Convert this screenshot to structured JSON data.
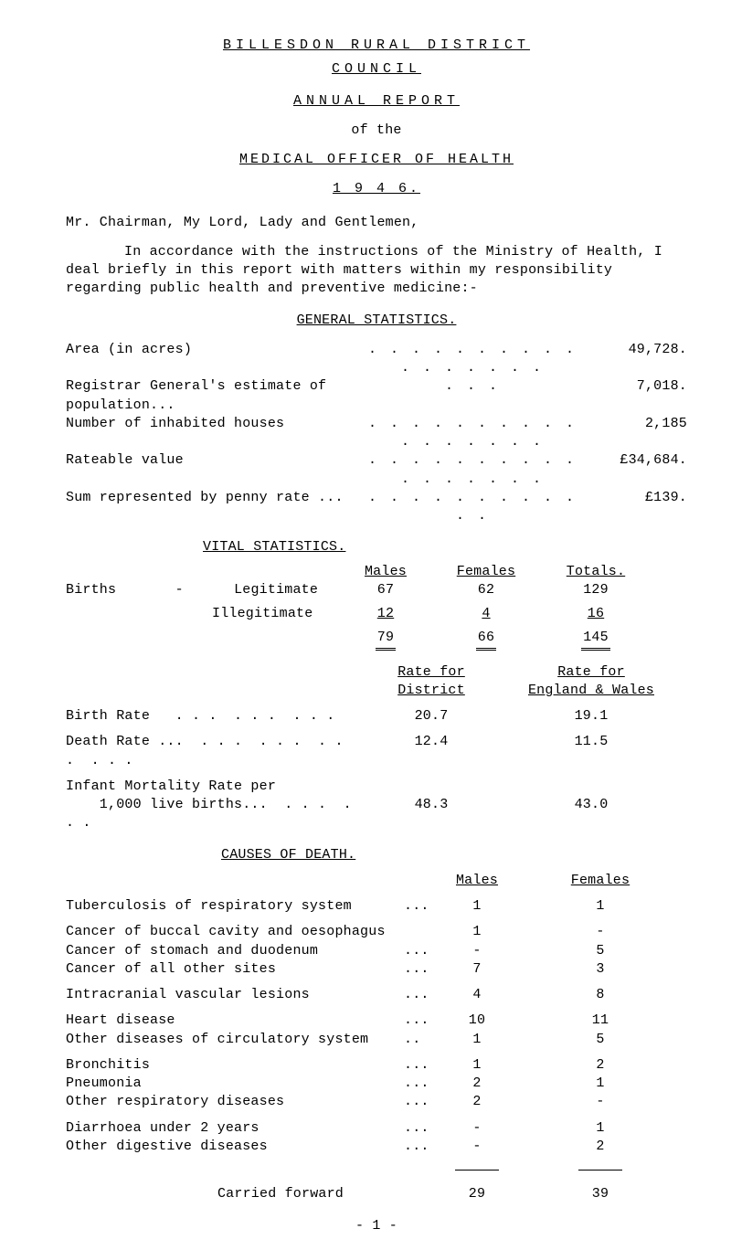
{
  "header": {
    "line1": "BILLESDON  RURAL  DISTRICT",
    "line2": "COUNCIL",
    "line3": "ANNUAL  REPORT",
    "line4": "of the",
    "line5": "MEDICAL  OFFICER  OF  HEALTH",
    "line6": "1 9 4 6."
  },
  "salutation": "Mr. Chairman, My Lord, Lady and Gentlemen,",
  "intro": "In accordance with the instructions of the Ministry of Health, I deal briefly in this report with matters within my responsibility regarding public health and preventive medicine:-",
  "sections": {
    "general_stats_title": "GENERAL STATISTICS.",
    "vital_stats_title": "VITAL STATISTICS.",
    "causes_title": "CAUSES OF DEATH."
  },
  "general_stats": [
    {
      "label": "Area (in acres)",
      "value": "49,728."
    },
    {
      "label": "Registrar General's estimate of population...",
      "value": "7,018."
    },
    {
      "label": "Number of inhabited houses",
      "value": "2,185"
    },
    {
      "label": "Rateable value",
      "value": "£34,684."
    },
    {
      "label": "Sum represented by penny rate ...",
      "value": "£139."
    }
  ],
  "vital_headers": {
    "c1": "Males",
    "c2": "Females",
    "c3": "Totals."
  },
  "vital": {
    "births_label": "Births",
    "births_dash": "-",
    "rows": [
      {
        "label": "Legitimate",
        "m": "67",
        "f": "62",
        "t": "129"
      },
      {
        "label": "Illegitimate",
        "m": "12",
        "f": "4",
        "t": "16"
      }
    ],
    "sum": {
      "m": "79",
      "f": "66",
      "t": "145"
    }
  },
  "rate_headers": {
    "c1a": "Rate for",
    "c1b": "District",
    "c2a": "Rate for",
    "c2b": "England & Wales"
  },
  "rate_rows": [
    {
      "label": "Birth Rate",
      "d": "20.7",
      "e": "19.1"
    },
    {
      "label": "Death Rate ...",
      "d": "12.4",
      "e": "11.5"
    },
    {
      "label": "Infant Mortality Rate per",
      "d": "",
      "e": ""
    },
    {
      "label": "    1,000 live births...",
      "d": "48.3",
      "e": "43.0"
    }
  ],
  "causes_headers": {
    "m": "Males",
    "f": "Females"
  },
  "causes": [
    {
      "label": "Tuberculosis of respiratory system",
      "dots": "...",
      "m": "1",
      "f": "1"
    },
    {
      "label": "Cancer of buccal cavity and oesophagus",
      "dots": "",
      "m": "1",
      "f": "-"
    },
    {
      "label": "Cancer of stomach and duodenum",
      "dots": "...",
      "m": "-",
      "f": "5"
    },
    {
      "label": "Cancer of all other sites",
      "dots": "...",
      "m": "7",
      "f": "3"
    },
    {
      "label": "Intracranial vascular lesions",
      "dots": "...",
      "m": "4",
      "f": "8"
    },
    {
      "label": "Heart disease",
      "dots": "...",
      "m": "10",
      "f": "11"
    },
    {
      "label": "Other diseases of circulatory system",
      "dots": "..",
      "m": "1",
      "f": "5"
    },
    {
      "label": "Bronchitis",
      "dots": "...",
      "m": "1",
      "f": "2"
    },
    {
      "label": "Pneumonia",
      "dots": "...",
      "m": "2",
      "f": "1"
    },
    {
      "label": "Other respiratory diseases",
      "dots": "...",
      "m": "2",
      "f": "-"
    },
    {
      "label": "Diarrhoea under 2 years",
      "dots": "...",
      "m": "-",
      "f": "1"
    },
    {
      "label": "Other digestive diseases",
      "dots": "...",
      "m": "-",
      "f": "2"
    }
  ],
  "carried": {
    "label": "Carried forward",
    "m": "29",
    "f": "39"
  },
  "pagenum": "- 1 -",
  "dots": ". .  . . .  . . .  . . .  . . .  . . ."
}
